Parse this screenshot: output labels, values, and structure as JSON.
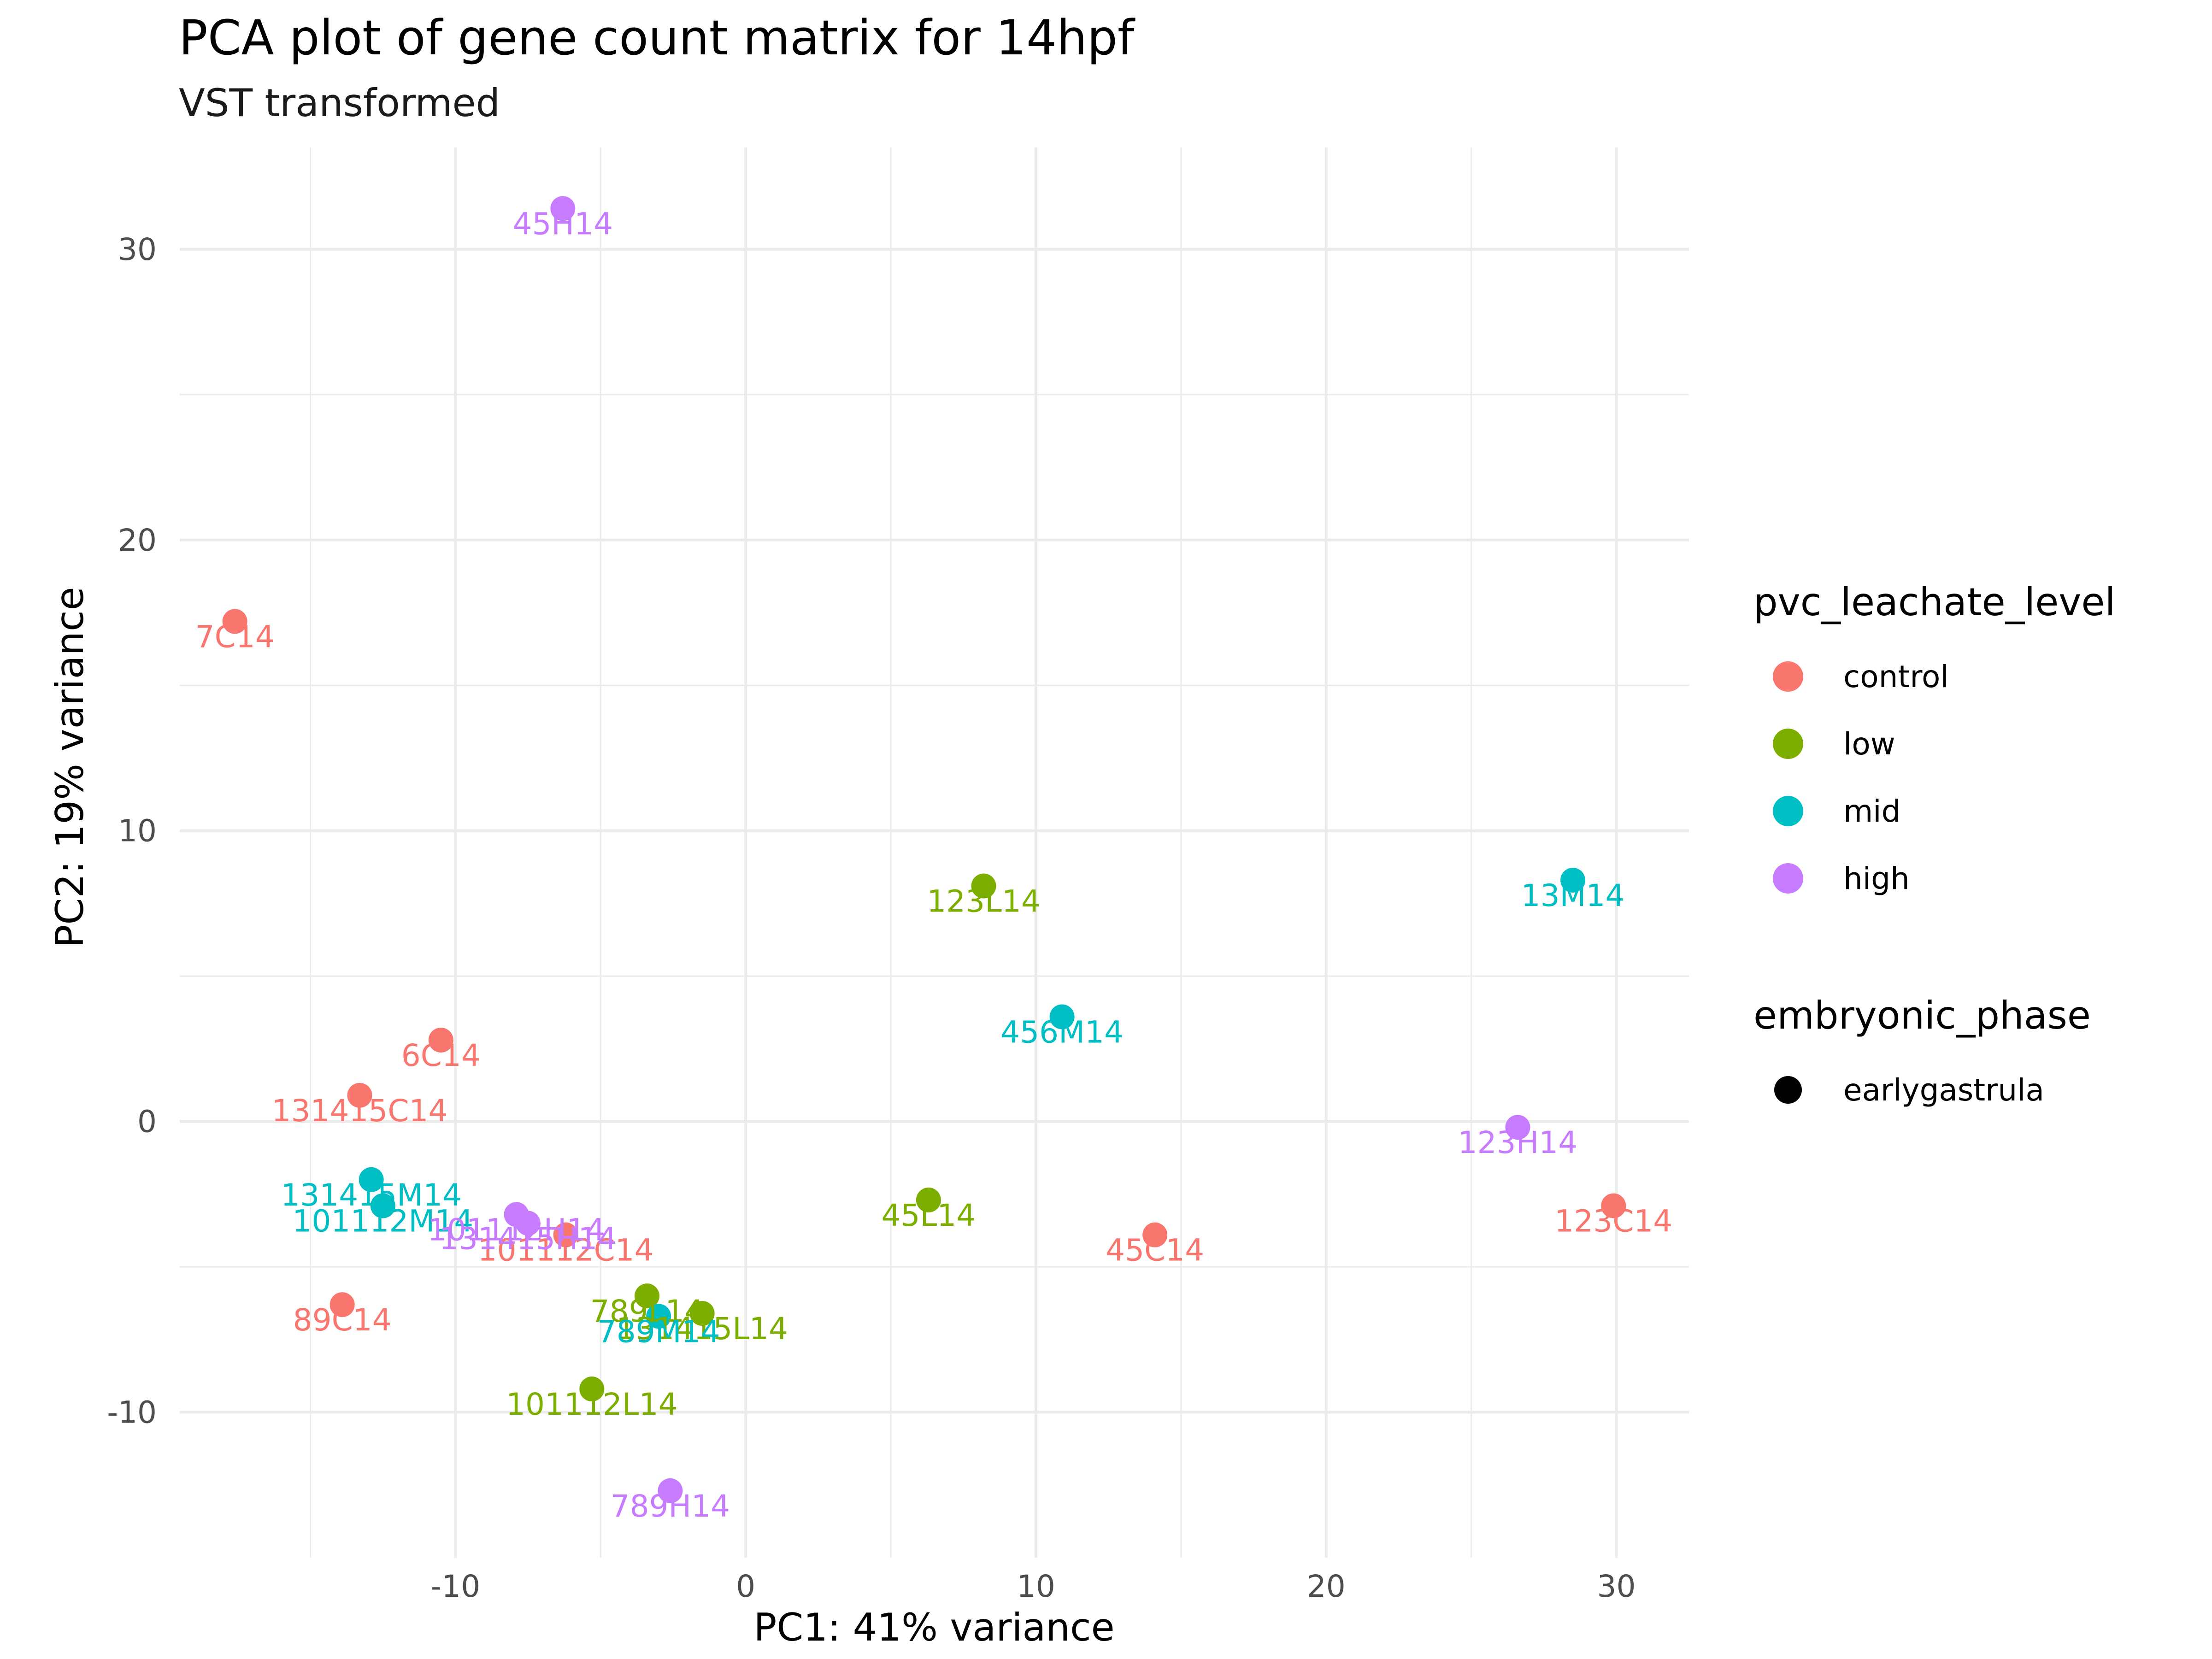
{
  "chart_data": {
    "type": "scatter",
    "title": "PCA plot of gene count matrix for 14hpf",
    "subtitle": "VST transformed",
    "xlabel": "PC1: 41% variance",
    "ylabel": "PC2: 19% variance",
    "xlim": [
      -19.5,
      32.5
    ],
    "ylim": [
      -15,
      33.5
    ],
    "x_ticks": [
      -10,
      0,
      10,
      20,
      30
    ],
    "x_tick_labels": [
      "-10",
      "0",
      "10",
      "20",
      "30"
    ],
    "y_ticks": [
      -10,
      0,
      10,
      20,
      30
    ],
    "y_tick_labels": [
      "-10",
      "0",
      "10",
      "20",
      "30"
    ],
    "grid": true,
    "legend_position": "right",
    "series": [
      {
        "name": "control",
        "color": "#F8766D",
        "points": [
          {
            "label": "7C14",
            "x": -17.6,
            "y": 17.2
          },
          {
            "label": "6C14",
            "x": -10.5,
            "y": 2.8
          },
          {
            "label": "131415C14",
            "x": -13.3,
            "y": 0.9
          },
          {
            "label": "101112C14",
            "x": -6.2,
            "y": -3.9
          },
          {
            "label": "89C14",
            "x": -13.9,
            "y": -6.3
          },
          {
            "label": "45C14",
            "x": 14.1,
            "y": -3.9
          },
          {
            "label": "123C14",
            "x": 29.9,
            "y": -2.9
          }
        ]
      },
      {
        "name": "low",
        "color": "#7CAE00",
        "points": [
          {
            "label": "123L14",
            "x": 8.2,
            "y": 8.1
          },
          {
            "label": "45L14",
            "x": 6.3,
            "y": -2.7
          },
          {
            "label": "789L14",
            "x": -3.4,
            "y": -6.0
          },
          {
            "label": "131415L14",
            "x": -1.5,
            "y": -6.6
          },
          {
            "label": "101112L14",
            "x": -5.3,
            "y": -9.2
          }
        ]
      },
      {
        "name": "mid",
        "color": "#00BFC4",
        "points": [
          {
            "label": "13M14",
            "x": 28.5,
            "y": 8.3
          },
          {
            "label": "456M14",
            "x": 10.9,
            "y": 3.6
          },
          {
            "label": "131415M14",
            "x": -12.9,
            "y": -2.0
          },
          {
            "label": "101112M14",
            "x": -12.5,
            "y": -2.9
          },
          {
            "label": "789M14",
            "x": -3.0,
            "y": -6.7
          }
        ]
      },
      {
        "name": "high",
        "color": "#C77CFF",
        "points": [
          {
            "label": "45H14",
            "x": -6.3,
            "y": 31.4
          },
          {
            "label": "123H14",
            "x": 26.6,
            "y": -0.2
          },
          {
            "label": "101112H14",
            "x": -7.9,
            "y": -3.2
          },
          {
            "label": "131415H14",
            "x": -7.5,
            "y": -3.5
          },
          {
            "label": "789H14",
            "x": -2.6,
            "y": -12.7
          }
        ]
      }
    ],
    "legend": {
      "color_title": "pvc_leachate_level",
      "color_items": [
        "control",
        "low",
        "mid",
        "high"
      ],
      "shape_title": "embryonic_phase",
      "shape_items": [
        {
          "label": "earlygastrula",
          "color": "#000000"
        }
      ]
    }
  }
}
